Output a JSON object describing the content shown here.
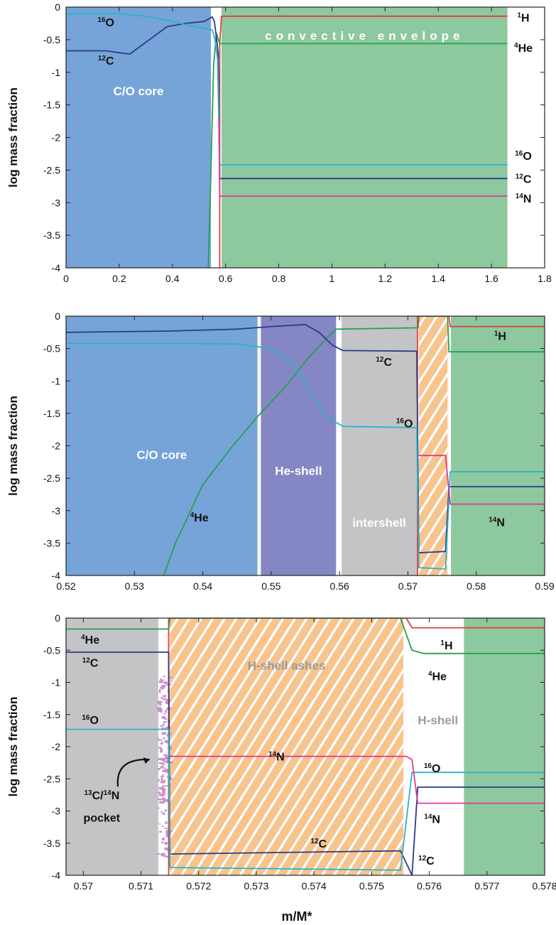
{
  "xlabel": "m/M*",
  "colors": {
    "core": "#77a4d8",
    "envelope": "#8ec89e",
    "heshell": "#8587c4",
    "intershell": "#c4c4c6",
    "ashes": "#f7c48e",
    "pocket": "#c993cc",
    "H1": "#e33c3c",
    "He4": "#23a24b",
    "C12": "#2b3a8c",
    "O16": "#2ab3c9",
    "N14": "#df3b8f"
  },
  "chart_data": [
    {
      "type": "line",
      "panel": "top",
      "xlabel": "",
      "ylabel": "log mass fraction",
      "xlim": [
        0,
        1.8
      ],
      "ylim": [
        -4,
        0
      ],
      "xticks": [
        "0",
        "0.2",
        "0.4",
        "0.6",
        "0.8",
        "1",
        "1.2",
        "1.4",
        "1.6",
        "1.8"
      ],
      "yticks": [
        "0",
        "-0.5",
        "-1",
        "-1.5",
        "-2",
        "-2.5",
        "-3",
        "-3.5",
        "-4"
      ],
      "regions": [
        {
          "name": "C/O core",
          "from": 0,
          "to": 0.545,
          "color": "core"
        },
        {
          "name": "convective envelope",
          "from": 0.585,
          "to": 1.66,
          "color": "envelope"
        }
      ],
      "series": [
        {
          "name": "1H",
          "color": "H1",
          "points": [
            [
              0.578,
              -4
            ],
            [
              0.578,
              -0.55
            ],
            [
              0.585,
              -0.14
            ],
            [
              1.66,
              -0.14
            ]
          ]
        },
        {
          "name": "4He",
          "color": "He4",
          "points": [
            [
              0.535,
              -4
            ],
            [
              0.545,
              -2.5
            ],
            [
              0.555,
              -0.9
            ],
            [
              0.565,
              -0.4
            ],
            [
              0.578,
              -0.56
            ],
            [
              1.66,
              -0.56
            ]
          ]
        },
        {
          "name": "12C",
          "color": "C12",
          "points": [
            [
              0,
              -0.67
            ],
            [
              0.15,
              -0.67
            ],
            [
              0.2,
              -0.7
            ],
            [
              0.24,
              -0.72
            ],
            [
              0.28,
              -0.6
            ],
            [
              0.33,
              -0.45
            ],
            [
              0.38,
              -0.3
            ],
            [
              0.45,
              -0.25
            ],
            [
              0.52,
              -0.22
            ],
            [
              0.55,
              -0.15
            ],
            [
              0.558,
              -0.22
            ],
            [
              0.565,
              -0.45
            ],
            [
              0.572,
              -0.7
            ],
            [
              0.578,
              -2.63
            ],
            [
              1.66,
              -2.63
            ]
          ]
        },
        {
          "name": "16O",
          "color": "O16",
          "points": [
            [
              0,
              -0.1
            ],
            [
              0.2,
              -0.1
            ],
            [
              0.3,
              -0.14
            ],
            [
              0.38,
              -0.2
            ],
            [
              0.45,
              -0.27
            ],
            [
              0.52,
              -0.33
            ],
            [
              0.55,
              -0.35
            ],
            [
              0.56,
              -0.5
            ],
            [
              0.57,
              -0.8
            ],
            [
              0.578,
              -2.42
            ],
            [
              1.66,
              -2.42
            ]
          ]
        },
        {
          "name": "14N",
          "color": "N14",
          "points": [
            [
              0.575,
              -1.7
            ],
            [
              0.578,
              -2.9
            ],
            [
              1.66,
              -2.9
            ]
          ]
        }
      ],
      "labels": [
        {
          "sup": "16",
          "base": "O",
          "x": 0.15,
          "y": -0.23
        },
        {
          "sup": "12",
          "base": "C",
          "x": 0.15,
          "y": -0.82
        },
        {
          "sup": "1",
          "base": "H",
          "x": 1.72,
          "y": -0.16
        },
        {
          "sup": "4",
          "base": "He",
          "x": 1.72,
          "y": -0.62
        },
        {
          "sup": "16",
          "base": "O",
          "x": 1.72,
          "y": -2.28
        },
        {
          "sup": "12",
          "base": "C",
          "x": 1.72,
          "y": -2.63
        },
        {
          "sup": "14",
          "base": "N",
          "x": 1.72,
          "y": -2.93
        }
      ]
    },
    {
      "type": "line",
      "panel": "middle",
      "xlabel": "",
      "ylabel": "log mass fraction",
      "xlim": [
        0.52,
        0.59
      ],
      "ylim": [
        -4,
        0
      ],
      "xticks": [
        "0.52",
        "0.53",
        "0.54",
        "0.55",
        "0.56",
        "0.57",
        "0.58",
        "0.59"
      ],
      "yticks": [
        "0",
        "-0.5",
        "-1",
        "-1.5",
        "-2",
        "-2.5",
        "-3",
        "-3.5",
        "-4"
      ],
      "regions": [
        {
          "name": "C/O core",
          "from": 0.52,
          "to": 0.548,
          "color": "core"
        },
        {
          "name": "He-shell",
          "from": 0.5485,
          "to": 0.5595,
          "color": "heshell"
        },
        {
          "name": "intershell",
          "from": 0.5603,
          "to": 0.5713,
          "color": "intershell"
        },
        {
          "name": "",
          "from": 0.5716,
          "to": 0.5758,
          "color": "ashes",
          "hatched": true
        },
        {
          "name": "",
          "from": 0.5763,
          "to": 0.59,
          "color": "envelope"
        }
      ],
      "series": [
        {
          "name": "1H",
          "color": "H1",
          "points": [
            [
              0.5714,
              -4
            ],
            [
              0.5714,
              0
            ],
            [
              0.576,
              0
            ],
            [
              0.5762,
              -0.16
            ],
            [
              0.59,
              -0.16
            ]
          ]
        },
        {
          "name": "4He",
          "color": "He4",
          "points": [
            [
              0.5343,
              -4
            ],
            [
              0.536,
              -3.5
            ],
            [
              0.54,
              -2.6
            ],
            [
              0.544,
              -2.05
            ],
            [
              0.548,
              -1.55
            ],
            [
              0.552,
              -1.1
            ],
            [
              0.555,
              -0.7
            ],
            [
              0.558,
              -0.35
            ],
            [
              0.5595,
              -0.2
            ],
            [
              0.5715,
              -0.18
            ],
            [
              0.5716,
              0
            ],
            [
              0.5758,
              0
            ],
            [
              0.576,
              -0.55
            ],
            [
              0.59,
              -0.55
            ]
          ]
        },
        {
          "name": "12C",
          "color": "C12",
          "points": [
            [
              0.52,
              -0.25
            ],
            [
              0.535,
              -0.23
            ],
            [
              0.545,
              -0.2
            ],
            [
              0.55,
              -0.16
            ],
            [
              0.555,
              -0.13
            ],
            [
              0.557,
              -0.25
            ],
            [
              0.559,
              -0.45
            ],
            [
              0.5605,
              -0.53
            ],
            [
              0.5713,
              -0.54
            ],
            [
              0.5716,
              -3.65
            ],
            [
              0.5755,
              -3.63
            ],
            [
              0.576,
              -2.63
            ],
            [
              0.59,
              -2.63
            ]
          ]
        },
        {
          "name": "16O",
          "color": "O16",
          "points": [
            [
              0.52,
              -0.42
            ],
            [
              0.535,
              -0.42
            ],
            [
              0.545,
              -0.43
            ],
            [
              0.55,
              -0.5
            ],
            [
              0.553,
              -0.7
            ],
            [
              0.556,
              -1.2
            ],
            [
              0.558,
              -1.55
            ],
            [
              0.5605,
              -1.7
            ],
            [
              0.5713,
              -1.72
            ],
            [
              0.5716,
              -3.88
            ],
            [
              0.5755,
              -3.9
            ],
            [
              0.5762,
              -2.4
            ],
            [
              0.59,
              -2.4
            ]
          ]
        },
        {
          "name": "14N",
          "color": "N14",
          "points": [
            [
              0.5714,
              -2.15
            ],
            [
              0.5755,
              -2.15
            ],
            [
              0.5762,
              -2.9
            ],
            [
              0.59,
              -2.9
            ]
          ]
        }
      ],
      "labels": [
        {
          "sup": "12",
          "base": "C",
          "x": 0.5665,
          "y": -0.7
        },
        {
          "sup": "16",
          "base": "O",
          "x": 0.5695,
          "y": -1.65
        },
        {
          "sup": "4",
          "base": "He",
          "x": 0.5395,
          "y": -3.1
        },
        {
          "sup": "1",
          "base": "H",
          "x": 0.5835,
          "y": -0.3
        },
        {
          "sup": "14",
          "base": "N",
          "x": 0.583,
          "y": -3.17
        }
      ]
    },
    {
      "type": "line",
      "panel": "bottom",
      "xlabel": "m/M*",
      "ylabel": "log mass fraction",
      "xlim": [
        0.5697,
        0.578
      ],
      "ylim": [
        -4,
        0
      ],
      "xticks": [
        "0.57",
        "0.571",
        "0.572",
        "0.573",
        "0.574",
        "0.575",
        "0.576",
        "0.577",
        "0.578"
      ],
      "yticks": [
        "0",
        "-0.5",
        "-1",
        "-1.5",
        "-2",
        "-2.5",
        "-3",
        "-3.5",
        "-4"
      ],
      "regions": [
        {
          "name": "",
          "from": 0.5697,
          "to": 0.5713,
          "color": "intershell"
        },
        {
          "name": "H-shell ashes",
          "from": 0.5715,
          "to": 0.57555,
          "color": "ashes",
          "hatched": true
        },
        {
          "name": "H-shell",
          "from": 0.5757,
          "to": 0.5766,
          "color": "none"
        },
        {
          "name": "",
          "from": 0.5766,
          "to": 0.578,
          "color": "envelope"
        }
      ],
      "series": [
        {
          "name": "1H",
          "color": "H1",
          "points": [
            [
              0.57148,
              -4
            ],
            [
              0.57148,
              0
            ],
            [
              0.5756,
              0
            ],
            [
              0.5757,
              -0.15
            ],
            [
              0.578,
              -0.15
            ]
          ]
        },
        {
          "name": "4He",
          "color": "He4",
          "points": [
            [
              0.5697,
              -0.17
            ],
            [
              0.57148,
              -0.17
            ],
            [
              0.5715,
              0
            ],
            [
              0.5755,
              0
            ],
            [
              0.5757,
              -0.5
            ],
            [
              0.5759,
              -0.55
            ],
            [
              0.578,
              -0.55
            ]
          ]
        },
        {
          "name": "12C",
          "color": "C12",
          "points": [
            [
              0.5697,
              -0.53
            ],
            [
              0.57148,
              -0.53
            ],
            [
              0.5715,
              -3.67
            ],
            [
              0.5755,
              -3.62
            ],
            [
              0.5757,
              -4
            ],
            [
              0.5758,
              -2.63
            ],
            [
              0.578,
              -2.63
            ]
          ]
        },
        {
          "name": "16O",
          "color": "O16",
          "points": [
            [
              0.5697,
              -1.73
            ],
            [
              0.57148,
              -1.73
            ],
            [
              0.5715,
              -3.88
            ],
            [
              0.5755,
              -3.92
            ],
            [
              0.5757,
              -2.4
            ],
            [
              0.578,
              -2.4
            ]
          ]
        },
        {
          "name": "14N",
          "color": "N14",
          "points": [
            [
              0.57148,
              -2.15
            ],
            [
              0.5756,
              -2.15
            ],
            [
              0.5757,
              -2.2
            ],
            [
              0.5758,
              -2.88
            ],
            [
              0.578,
              -2.88
            ]
          ]
        }
      ],
      "labels": [
        {
          "sup": "4",
          "base": "He",
          "x": 0.57012,
          "y": -0.33
        },
        {
          "sup": "12",
          "base": "C",
          "x": 0.57012,
          "y": -0.69
        },
        {
          "sup": "16",
          "base": "O",
          "x": 0.57012,
          "y": -1.58
        },
        {
          "sup": "14",
          "base": "N",
          "x": 0.57335,
          "y": -2.15
        },
        {
          "sup": "1",
          "base": "H",
          "x": 0.5763,
          "y": -0.42
        },
        {
          "sup": "4",
          "base": "He",
          "x": 0.57614,
          "y": -0.9
        },
        {
          "sup": "16",
          "base": "O",
          "x": 0.57605,
          "y": -2.33
        },
        {
          "sup": "14",
          "base": "N",
          "x": 0.57605,
          "y": -3.12
        },
        {
          "sup": "12",
          "base": "C",
          "x": 0.57408,
          "y": -3.5
        },
        {
          "sup": "12",
          "base": "C",
          "x": 0.57595,
          "y": -3.77
        }
      ],
      "annotation": {
        "line1_sup1": "13",
        "line1_a": "C/",
        "line1_sup2": "14",
        "line1_b": "N",
        "line2": "pocket"
      }
    }
  ]
}
